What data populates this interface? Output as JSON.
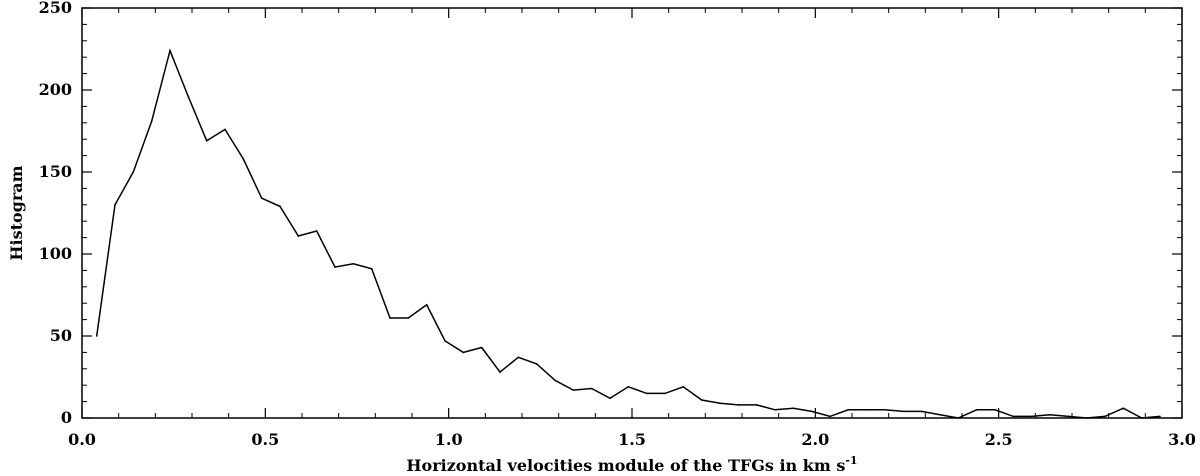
{
  "chart_data": {
    "type": "line",
    "title": "",
    "xlabel": "Horizontal velocities module of the TFGs in  km s",
    "xlabel_superscript": "-1",
    "ylabel": "Histogram",
    "xlim": [
      0.0,
      3.0
    ],
    "ylim": [
      0,
      250
    ],
    "x_tick_values": [
      0.0,
      0.5,
      1.0,
      1.5,
      2.0,
      2.5,
      3.0
    ],
    "x_tick_labels": [
      "0.0",
      "0.5",
      "1.0",
      "1.5",
      "2.0",
      "2.5",
      "3.0"
    ],
    "y_tick_values": [
      0,
      50,
      100,
      150,
      200,
      250
    ],
    "y_tick_labels": [
      "0",
      "50",
      "100",
      "150",
      "200",
      "250"
    ],
    "grid": false,
    "series": [
      {
        "x": [
          0.04,
          0.09,
          0.14,
          0.19,
          0.24,
          0.29,
          0.34,
          0.39,
          0.44,
          0.49,
          0.54,
          0.59,
          0.64,
          0.69,
          0.74,
          0.79,
          0.84,
          0.89,
          0.94,
          0.99,
          1.04,
          1.09,
          1.14,
          1.19,
          1.24,
          1.29,
          1.34,
          1.39,
          1.44,
          1.49,
          1.54,
          1.59,
          1.64,
          1.69,
          1.74,
          1.79,
          1.84,
          1.89,
          1.94,
          1.99,
          2.04,
          2.09,
          2.14,
          2.19,
          2.24,
          2.29,
          2.34,
          2.39,
          2.44,
          2.49,
          2.54,
          2.59,
          2.64,
          2.69,
          2.74,
          2.79,
          2.84,
          2.89,
          2.94
        ],
        "values": [
          50,
          130,
          150,
          181,
          224,
          196,
          169,
          176,
          158,
          134,
          129,
          111,
          114,
          92,
          94,
          91,
          61,
          61,
          69,
          47,
          40,
          43,
          28,
          37,
          33,
          23,
          17,
          18,
          12,
          19,
          15,
          15,
          19,
          11,
          9,
          8,
          8,
          5,
          6,
          4,
          1,
          5,
          5,
          5,
          4,
          4,
          2,
          0,
          5,
          5,
          1,
          1,
          2,
          1,
          0,
          1,
          6,
          0,
          1
        ]
      }
    ]
  }
}
